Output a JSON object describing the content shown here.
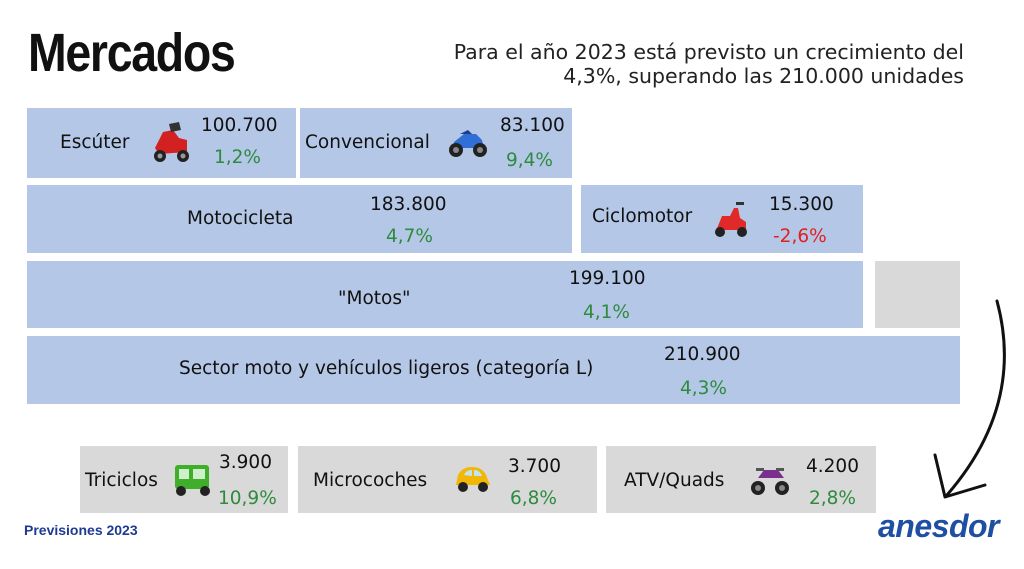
{
  "header": {
    "title": "Mercados",
    "subtitle": "Para el año 2023 está previsto un crecimiento del 4,3%, superando las 210.000 unidades"
  },
  "segments": {
    "escuter": {
      "label": "Escúter",
      "value": "100.700",
      "growth": "1,2%",
      "icon": "scooter-icon"
    },
    "convencional": {
      "label": "Convencional",
      "value": "83.100",
      "growth": "9,4%",
      "icon": "motorcycle-icon"
    },
    "motocicleta": {
      "label": "Motocicleta",
      "value": "183.800",
      "growth": "4,7%"
    },
    "ciclomotor": {
      "label": "Ciclomotor",
      "value": "15.300",
      "growth": "-2,6%",
      "icon": "moped-icon"
    },
    "motos": {
      "label": "\"Motos\"",
      "value": "199.100",
      "growth": "4,1%"
    },
    "sector": {
      "label": "Sector moto y vehículos ligeros (categoría L)",
      "value": "210.900",
      "growth": "4,3%"
    },
    "triciclos": {
      "label": "Triciclos",
      "value": "3.900",
      "growth": "10,9%",
      "icon": "tricycle-icon"
    },
    "microcoches": {
      "label": "Microcoches",
      "value": "3.700",
      "growth": "6,8%",
      "icon": "microcar-icon"
    },
    "atv": {
      "label": "ATV/Quads",
      "value": "4.200",
      "growth": "2,8%",
      "icon": "quad-icon"
    }
  },
  "footer": {
    "label": "Previsiones 2023",
    "brand": "anesdor"
  },
  "colors": {
    "box_blue": "#b4c7e7",
    "box_grey": "#d9d9d9",
    "positive": "#2e8b3e",
    "negative": "#e02020",
    "brand": "#1f4fa3"
  }
}
